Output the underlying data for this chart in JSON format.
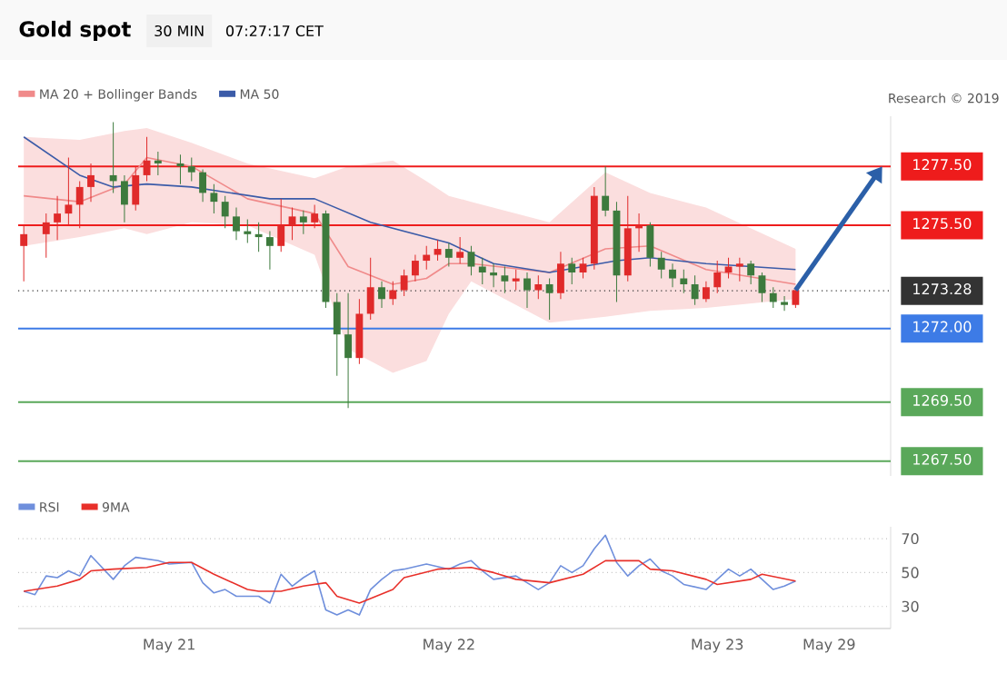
{
  "chart_data": [
    {
      "type": "candlestick",
      "title": "Gold spot",
      "subtitle": "30 MIN",
      "annotations": [
        "07:27:17 CET",
        "Research © 2019"
      ],
      "categories": [
        null,
        null,
        null,
        null,
        null,
        null,
        null,
        null,
        null,
        null,
        null,
        null,
        null,
        null,
        null,
        null,
        null,
        null,
        null,
        null,
        null,
        null,
        null,
        null,
        null,
        null,
        null,
        null,
        null,
        null,
        null,
        null,
        null,
        null,
        null,
        null,
        null,
        null,
        null,
        null,
        null,
        null,
        null,
        null,
        null,
        null,
        null,
        null,
        null,
        null,
        null,
        null,
        null,
        null,
        null,
        null,
        null,
        null,
        null,
        null,
        null,
        null,
        null,
        null,
        null,
        null,
        null,
        null,
        null,
        null,
        null,
        null,
        null,
        null,
        null,
        null,
        null,
        null
      ],
      "ohlc": [
        [
          1274.8,
          1275.5,
          1273.6,
          1275.2
        ],
        null,
        [
          1275.2,
          1275.9,
          1274.4,
          1275.6
        ],
        [
          1275.6,
          1276.5,
          1275.0,
          1275.9
        ],
        [
          1275.9,
          1277.8,
          1275.5,
          1276.2
        ],
        [
          1276.2,
          1277.0,
          1275.4,
          1276.8
        ],
        [
          1276.8,
          1277.6,
          1276.3,
          1277.2
        ],
        null,
        [
          1277.2,
          1279.0,
          1276.6,
          1277.0
        ],
        [
          1277.0,
          1277.2,
          1275.6,
          1276.2
        ],
        [
          1276.2,
          1277.5,
          1276.0,
          1277.2
        ],
        [
          1277.2,
          1278.5,
          1277.0,
          1277.7
        ],
        [
          1277.7,
          1278.0,
          1277.2,
          1277.6
        ],
        null,
        [
          1277.6,
          1277.9,
          1276.9,
          1277.5
        ],
        [
          1277.5,
          1277.8,
          1277.0,
          1277.3
        ],
        [
          1277.3,
          1277.4,
          1276.3,
          1276.6
        ],
        [
          1276.6,
          1276.9,
          1275.9,
          1276.3
        ],
        [
          1276.3,
          1276.5,
          1275.4,
          1275.8
        ],
        [
          1275.8,
          1276.1,
          1275.0,
          1275.3
        ],
        [
          1275.3,
          1275.7,
          1274.9,
          1275.2
        ],
        [
          1275.2,
          1275.6,
          1274.6,
          1275.1
        ],
        [
          1275.1,
          1275.3,
          1274.0,
          1274.8
        ],
        [
          1274.8,
          1276.4,
          1274.6,
          1275.5
        ],
        [
          1275.5,
          1276.1,
          1275.0,
          1275.8
        ],
        [
          1275.8,
          1276.0,
          1275.2,
          1275.6
        ],
        [
          1275.6,
          1276.2,
          1275.4,
          1275.9
        ],
        [
          1275.9,
          1276.0,
          1272.7,
          1272.9
        ],
        [
          1272.9,
          1273.2,
          1270.4,
          1271.8
        ],
        [
          1271.8,
          1273.2,
          1269.3,
          1271.0
        ],
        [
          1271.0,
          1273.0,
          1270.8,
          1272.5
        ],
        [
          1272.5,
          1274.4,
          1272.3,
          1273.4
        ],
        [
          1273.4,
          1273.6,
          1272.7,
          1273.0
        ],
        [
          1273.0,
          1273.6,
          1272.8,
          1273.3
        ],
        [
          1273.3,
          1274.0,
          1273.1,
          1273.8
        ],
        [
          1273.8,
          1274.5,
          1273.6,
          1274.3
        ],
        [
          1274.3,
          1274.8,
          1274.0,
          1274.5
        ],
        [
          1274.5,
          1275.0,
          1274.3,
          1274.7
        ],
        [
          1274.7,
          1274.9,
          1274.1,
          1274.4
        ],
        [
          1274.4,
          1275.1,
          1274.2,
          1274.6
        ],
        [
          1274.6,
          1274.8,
          1273.8,
          1274.1
        ],
        [
          1274.1,
          1274.4,
          1273.5,
          1273.9
        ],
        [
          1273.9,
          1274.2,
          1273.4,
          1273.8
        ],
        [
          1273.8,
          1274.1,
          1273.2,
          1273.6
        ],
        [
          1273.6,
          1274.0,
          1273.3,
          1273.7
        ],
        [
          1273.7,
          1273.9,
          1272.7,
          1273.3
        ],
        [
          1273.3,
          1273.8,
          1273.0,
          1273.5
        ],
        [
          1273.5,
          1273.7,
          1272.3,
          1273.2
        ],
        [
          1273.2,
          1274.6,
          1273.0,
          1274.2
        ],
        [
          1274.2,
          1274.4,
          1273.5,
          1273.9
        ],
        [
          1273.9,
          1274.4,
          1273.7,
          1274.2
        ],
        [
          1274.2,
          1276.8,
          1274.0,
          1276.5
        ],
        [
          1276.5,
          1277.5,
          1275.8,
          1276.0
        ],
        [
          1276.0,
          1276.3,
          1272.9,
          1273.8
        ],
        [
          1273.8,
          1276.5,
          1273.6,
          1275.4
        ],
        [
          1275.4,
          1275.9,
          1274.6,
          1275.5
        ],
        [
          1275.5,
          1275.6,
          1274.1,
          1274.4
        ],
        [
          1274.4,
          1274.6,
          1273.7,
          1274.0
        ],
        [
          1274.0,
          1274.2,
          1273.4,
          1273.7
        ],
        [
          1273.7,
          1274.0,
          1273.2,
          1273.5
        ],
        [
          1273.5,
          1273.8,
          1272.8,
          1273.0
        ],
        [
          1273.0,
          1273.6,
          1272.9,
          1273.4
        ],
        [
          1273.4,
          1274.3,
          1273.2,
          1273.9
        ],
        [
          1273.9,
          1274.4,
          1273.7,
          1274.1
        ],
        [
          1274.1,
          1274.4,
          1273.6,
          1274.2
        ],
        [
          1274.2,
          1274.3,
          1273.5,
          1273.8
        ],
        [
          1273.8,
          1273.9,
          1272.9,
          1273.2
        ],
        [
          1273.2,
          1273.4,
          1272.7,
          1272.9
        ],
        [
          1272.9,
          1273.1,
          1272.6,
          1272.8
        ],
        [
          1272.8,
          1273.4,
          1272.7,
          1273.3
        ],
        null,
        null,
        null,
        null,
        null,
        null,
        null,
        null
      ],
      "series": [
        {
          "name": "MA 20 + Bollinger Bands",
          "type": "line",
          "color": "#f08a8a",
          "values": [
            1276.5,
            null,
            null,
            null,
            null,
            1276.3,
            null,
            null,
            null,
            1276.9,
            null,
            1277.8,
            null,
            null,
            null,
            1277.5,
            null,
            null,
            null,
            null,
            1276.4,
            null,
            null,
            null,
            null,
            null,
            1275.9,
            null,
            null,
            1274.1,
            null,
            null,
            null,
            1273.5,
            null,
            null,
            1273.7,
            null,
            1274.2,
            null,
            1274.2,
            null,
            null,
            null,
            null,
            null,
            null,
            1273.9,
            null,
            null,
            null,
            null,
            1274.7,
            null,
            null,
            null,
            1274.8,
            null,
            null,
            null,
            null,
            1274.0,
            null,
            null,
            null,
            null,
            null,
            null,
            null,
            1273.5,
            null,
            null,
            null,
            null,
            null,
            null,
            null,
            null
          ],
          "upper": [
            1278.5,
            null,
            null,
            null,
            null,
            1278.4,
            null,
            null,
            null,
            1278.7,
            null,
            1278.8,
            null,
            null,
            null,
            1278.3,
            null,
            null,
            null,
            null,
            1277.6,
            null,
            null,
            null,
            null,
            null,
            1277.1,
            null,
            null,
            1277.5,
            null,
            null,
            null,
            1277.7,
            null,
            null,
            1277.0,
            null,
            1276.5,
            null,
            1276.3,
            null,
            null,
            null,
            null,
            null,
            null,
            1275.6,
            null,
            null,
            null,
            null,
            1277.3,
            null,
            null,
            null,
            1276.6,
            null,
            null,
            null,
            null,
            1276.1,
            null,
            null,
            null,
            null,
            null,
            null,
            null,
            1274.7,
            null,
            null,
            null,
            null,
            null,
            null,
            null,
            null
          ],
          "lower": [
            1274.8,
            null,
            null,
            null,
            null,
            1275.1,
            null,
            null,
            null,
            1275.4,
            null,
            1275.2,
            null,
            null,
            null,
            1275.6,
            null,
            null,
            null,
            null,
            1275.5,
            null,
            null,
            null,
            null,
            null,
            1274.5,
            null,
            null,
            1271.3,
            null,
            null,
            null,
            1270.5,
            null,
            null,
            1270.9,
            null,
            1272.5,
            null,
            1273.6,
            null,
            null,
            null,
            null,
            null,
            null,
            1272.2,
            null,
            null,
            null,
            null,
            1272.4,
            null,
            null,
            null,
            1272.6,
            null,
            null,
            null,
            null,
            1272.7,
            null,
            null,
            null,
            null,
            null,
            null,
            null,
            1273.0,
            null,
            null,
            null,
            null,
            null,
            null,
            null,
            null
          ]
        },
        {
          "name": "MA 50",
          "type": "line",
          "color": "#3b5ba8",
          "values": [
            1278.5,
            null,
            null,
            null,
            null,
            1277.2,
            null,
            null,
            1276.8,
            null,
            null,
            1276.9,
            null,
            null,
            null,
            1276.8,
            null,
            null,
            null,
            null,
            null,
            null,
            1276.4,
            null,
            null,
            null,
            1276.4,
            null,
            null,
            null,
            null,
            1275.6,
            null,
            null,
            null,
            null,
            null,
            null,
            1274.9,
            null,
            null,
            null,
            1274.2,
            null,
            null,
            null,
            null,
            1273.9,
            null,
            null,
            null,
            null,
            null,
            1274.3,
            null,
            null,
            1274.4,
            null,
            null,
            null,
            null,
            1274.2,
            null,
            null,
            null,
            null,
            null,
            null,
            null,
            1274.0,
            null,
            null,
            null,
            null,
            null,
            null,
            null,
            null
          ]
        }
      ],
      "yticks": [
        {
          "value": 1267.5,
          "label": "1267.50"
        },
        {
          "value": 1269.5,
          "label": "1269.50"
        },
        {
          "value": 1272.0,
          "label": "1272.00"
        },
        {
          "value": 1273.28,
          "label": "1273.28"
        },
        {
          "value": 1275.5,
          "label": "1275.50"
        },
        {
          "value": 1277.5,
          "label": "1277.50"
        }
      ],
      "ylim": [
        1267.0,
        1279.2
      ],
      "tick_labels": "y",
      "legend": "top left",
      "ref_lines": [
        {
          "axis": "y",
          "value": 1277.5,
          "color": "#ee1c1c",
          "line_style": "solid"
        },
        {
          "axis": "y",
          "value": 1275.5,
          "color": "#ee1c1c",
          "line_style": "solid"
        },
        {
          "axis": "y",
          "value": 1273.28,
          "color": "#333333",
          "line_style": "dotted"
        },
        {
          "axis": "y",
          "value": 1272.0,
          "color": "#3d7be6",
          "line_style": "solid"
        },
        {
          "axis": "y",
          "value": 1269.5,
          "color": "#5aa85a",
          "line_style": "solid"
        },
        {
          "axis": "y",
          "value": 1267.5,
          "color": "#5aa85a",
          "line_style": "solid"
        }
      ]
    },
    {
      "type": "line",
      "categories": [
        null,
        null,
        null,
        null,
        null,
        null,
        null,
        null,
        null,
        null,
        null,
        null,
        null,
        "May 21",
        null,
        null,
        null,
        null,
        null,
        null,
        null,
        null,
        null,
        null,
        null,
        null,
        null,
        null,
        null,
        null,
        null,
        null,
        null,
        null,
        null,
        null,
        null,
        null,
        "May 22",
        null,
        null,
        null,
        null,
        null,
        null,
        null,
        null,
        null,
        null,
        null,
        null,
        null,
        null,
        null,
        null,
        null,
        null,
        null,
        null,
        null,
        null,
        null,
        "May 23",
        null,
        null,
        null,
        null,
        null,
        null,
        null,
        null,
        null,
        "May 29",
        null,
        null,
        null,
        null,
        null
      ],
      "series": [
        {
          "name": "RSI",
          "color": "#6f8fdc",
          "values": [
            39,
            37,
            48,
            47,
            51,
            48,
            60,
            null,
            46,
            54,
            59,
            null,
            57,
            55,
            null,
            56,
            44,
            38,
            40,
            36,
            null,
            36,
            32,
            49,
            42,
            47,
            51,
            28,
            25,
            28,
            25,
            40,
            46,
            51,
            52,
            null,
            55,
            null,
            52,
            55,
            57,
            51,
            46,
            null,
            48,
            null,
            40,
            44,
            54,
            50,
            54,
            64,
            72,
            56,
            48,
            54,
            58,
            51,
            48,
            43,
            null,
            40,
            46,
            52,
            48,
            52,
            46,
            40,
            42,
            45,
            null,
            null,
            null,
            null,
            null,
            null,
            null,
            null
          ]
        },
        {
          "name": "9MA",
          "color": "#e8302a",
          "values": [
            39,
            null,
            null,
            42,
            null,
            46,
            51,
            null,
            52,
            null,
            null,
            53,
            null,
            56,
            null,
            56,
            null,
            49,
            null,
            null,
            40,
            39,
            null,
            39,
            null,
            42,
            null,
            44,
            36,
            null,
            32,
            null,
            null,
            40,
            47,
            null,
            null,
            52,
            null,
            null,
            53,
            null,
            50,
            null,
            46,
            null,
            null,
            44,
            null,
            null,
            49,
            null,
            57,
            null,
            null,
            57,
            52,
            null,
            51,
            null,
            null,
            46,
            43,
            null,
            null,
            46,
            49,
            null,
            null,
            45,
            null,
            null,
            null,
            null,
            null,
            null,
            null,
            null
          ]
        }
      ],
      "ylim": [
        17,
        77
      ],
      "yticks": [
        30,
        50,
        70
      ],
      "grid": "y",
      "legend": "top left"
    }
  ]
}
